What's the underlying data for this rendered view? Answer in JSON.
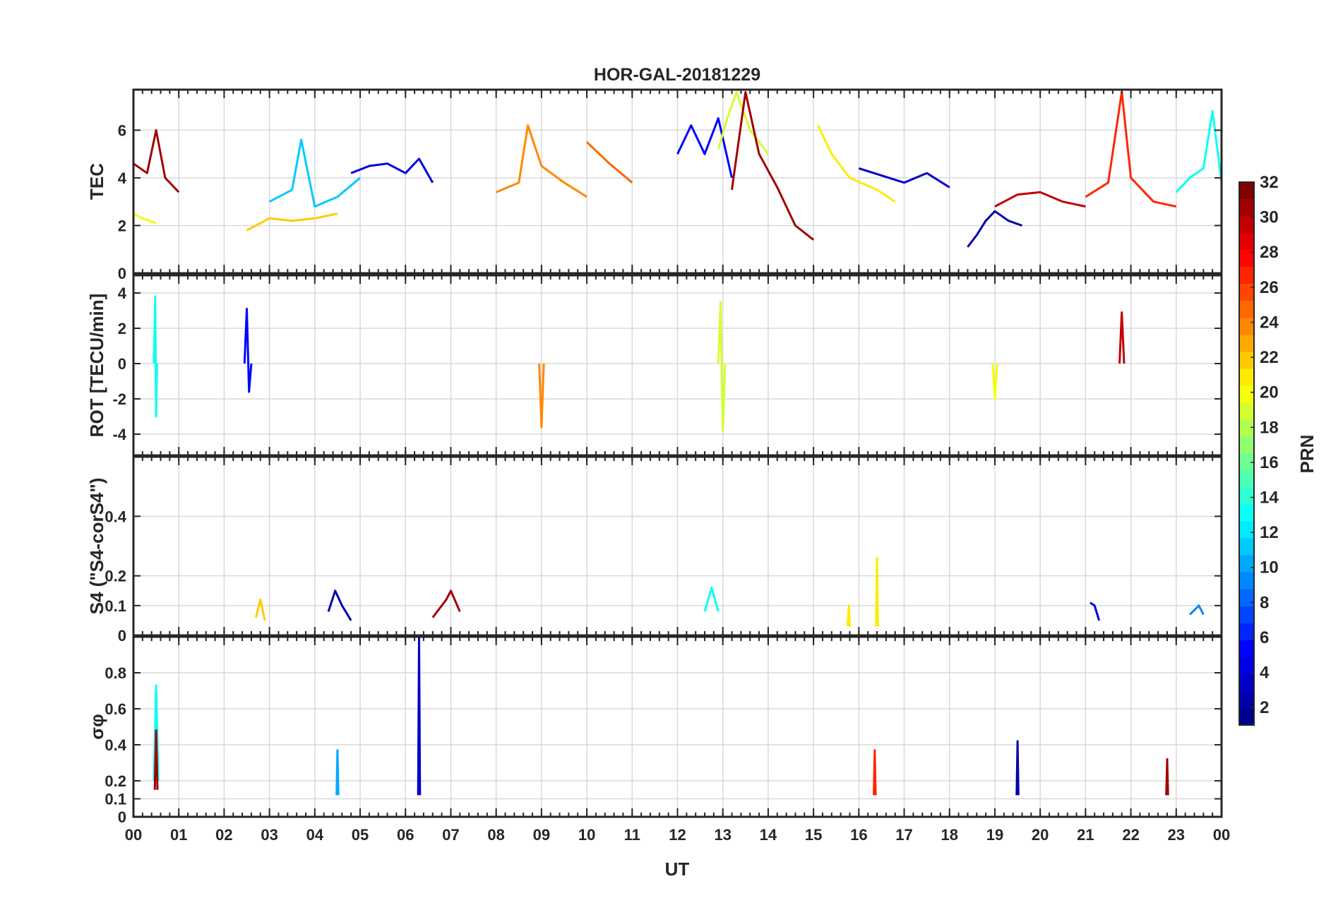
{
  "figure": {
    "title": "HOR-GAL-20181229",
    "xlabel": "UT",
    "x_tick_labels": [
      "00",
      "01",
      "02",
      "03",
      "04",
      "05",
      "06",
      "07",
      "08",
      "09",
      "10",
      "11",
      "12",
      "13",
      "14",
      "15",
      "16",
      "17",
      "18",
      "19",
      "20",
      "21",
      "22",
      "23",
      "00"
    ]
  },
  "colorbar": {
    "label": "PRN",
    "range": [
      1,
      32
    ],
    "tick_labels": [
      "2",
      "4",
      "6",
      "8",
      "10",
      "12",
      "14",
      "16",
      "18",
      "20",
      "22",
      "24",
      "26",
      "28",
      "30",
      "32"
    ],
    "tick_values": [
      2,
      4,
      6,
      8,
      10,
      12,
      14,
      16,
      18,
      20,
      22,
      24,
      26,
      28,
      30,
      32
    ],
    "colormap": "jet",
    "colors": [
      "#00008f",
      "#0000ff",
      "#0080ff",
      "#00ffff",
      "#80ff80",
      "#ffff00",
      "#ff8000",
      "#ff0000",
      "#800000"
    ]
  },
  "chart_data": [
    {
      "type": "line",
      "panel": "tec",
      "ylabel": "TEC",
      "ylim": [
        0,
        7.7
      ],
      "y_tick_values": [
        0,
        2,
        4,
        6
      ],
      "y_tick_labels": [
        "0",
        "2",
        "4",
        "6"
      ],
      "xlim": [
        0,
        24
      ],
      "grid": true,
      "series": [
        {
          "prn": 13,
          "x": [
            23.0,
            23.3,
            23.6,
            23.8,
            24.0
          ],
          "y": [
            3.4,
            4.0,
            4.4,
            6.8,
            3.8
          ]
        },
        {
          "prn": 31,
          "x": [
            0.0,
            0.3,
            0.5,
            0.7,
            1.0
          ],
          "y": [
            4.6,
            4.2,
            6.0,
            4.0,
            3.4
          ]
        },
        {
          "prn": 20,
          "x": [
            0.0,
            0.2,
            0.5
          ],
          "y": [
            2.5,
            2.3,
            2.1
          ]
        },
        {
          "prn": 22,
          "x": [
            2.5,
            3.0,
            3.5,
            4.0,
            4.5
          ],
          "y": [
            1.8,
            2.3,
            2.2,
            2.3,
            2.5
          ]
        },
        {
          "prn": 11,
          "x": [
            3.0,
            3.5,
            3.7,
            4.0,
            4.5,
            5.0
          ],
          "y": [
            3.0,
            3.5,
            5.6,
            2.8,
            3.2,
            4.0
          ]
        },
        {
          "prn": 4,
          "x": [
            4.8,
            5.2,
            5.6,
            6.0,
            6.3,
            6.6
          ],
          "y": [
            4.2,
            4.5,
            4.6,
            4.2,
            4.8,
            3.8
          ]
        },
        {
          "prn": 24,
          "x": [
            8.0,
            8.5,
            8.7,
            9.0,
            9.5,
            10.0
          ],
          "y": [
            3.4,
            3.8,
            6.2,
            4.5,
            3.8,
            3.2
          ]
        },
        {
          "prn": 25,
          "x": [
            10.0,
            10.5,
            11.0
          ],
          "y": [
            5.5,
            4.6,
            3.8
          ]
        },
        {
          "prn": 5,
          "x": [
            12.0,
            12.3,
            12.6,
            12.9,
            13.2
          ],
          "y": [
            5.0,
            6.2,
            5.0,
            6.5,
            4.0
          ]
        },
        {
          "prn": 19,
          "x": [
            12.9,
            13.1,
            13.3,
            13.6,
            14.0
          ],
          "y": [
            5.2,
            6.5,
            7.6,
            6.0,
            5.0
          ]
        },
        {
          "prn": 31,
          "x": [
            13.2,
            13.5,
            13.8,
            14.2,
            14.6,
            15.0
          ],
          "y": [
            3.5,
            7.6,
            5.0,
            3.6,
            2.0,
            1.4
          ]
        },
        {
          "prn": 21,
          "x": [
            15.1,
            15.4,
            15.8,
            16.4,
            16.8
          ],
          "y": [
            6.2,
            5.0,
            4.0,
            3.5,
            3.0
          ]
        },
        {
          "prn": 3,
          "x": [
            16.0,
            16.5,
            17.0,
            17.5,
            18.0
          ],
          "y": [
            4.4,
            4.1,
            3.8,
            4.2,
            3.6
          ]
        },
        {
          "prn": 2,
          "x": [
            18.4,
            18.6,
            18.8,
            19.0,
            19.3,
            19.6
          ],
          "y": [
            1.1,
            1.6,
            2.2,
            2.6,
            2.2,
            2.0
          ]
        },
        {
          "prn": 30,
          "x": [
            19.0,
            19.5,
            20.0,
            20.5,
            21.0
          ],
          "y": [
            2.8,
            3.3,
            3.4,
            3.0,
            2.8
          ]
        },
        {
          "prn": 27,
          "x": [
            21.0,
            21.5,
            21.8,
            22.0,
            22.5,
            23.0
          ],
          "y": [
            3.2,
            3.8,
            7.6,
            4.0,
            3.0,
            2.8
          ]
        }
      ]
    },
    {
      "type": "line",
      "panel": "rot",
      "ylabel": "ROT [TECU/min]",
      "ylim": [
        -5.2,
        5.0
      ],
      "y_tick_values": [
        -4,
        -2,
        0,
        2,
        4
      ],
      "y_tick_labels": [
        "-4",
        "-2",
        "0",
        "2",
        "4"
      ],
      "xlim": [
        0,
        24
      ],
      "grid": true,
      "series": [
        {
          "prn": 13,
          "x": [
            0.45,
            0.48,
            0.5,
            0.52
          ],
          "y": [
            0.0,
            3.8,
            -3.0,
            0.0
          ]
        },
        {
          "prn": 5,
          "x": [
            2.45,
            2.5,
            2.55,
            2.6
          ],
          "y": [
            0.0,
            3.1,
            -1.6,
            0.0
          ]
        },
        {
          "prn": 24,
          "x": [
            8.95,
            9.0,
            9.05
          ],
          "y": [
            0.0,
            -3.6,
            0.0
          ]
        },
        {
          "prn": 19,
          "x": [
            12.9,
            12.95,
            13.0,
            13.05
          ],
          "y": [
            0.0,
            3.5,
            -3.8,
            0.0
          ]
        },
        {
          "prn": 20,
          "x": [
            18.95,
            19.0,
            19.05
          ],
          "y": [
            0.0,
            -2.0,
            0.0
          ]
        },
        {
          "prn": 30,
          "x": [
            21.75,
            21.8,
            21.85
          ],
          "y": [
            0.0,
            2.9,
            0.0
          ]
        }
      ]
    },
    {
      "type": "line",
      "panel": "s4",
      "ylabel": "S4 (\"S4-corS4\")",
      "ylim": [
        0,
        0.6
      ],
      "y_tick_values": [
        0,
        0.1,
        0.2,
        0.4
      ],
      "y_tick_labels": [
        "0",
        "0.1",
        "0.2",
        "0.4"
      ],
      "xlim": [
        0,
        24
      ],
      "grid": true,
      "series": [
        {
          "prn": 2,
          "x": [
            4.3,
            4.45,
            4.6,
            4.8
          ],
          "y": [
            0.08,
            0.15,
            0.1,
            0.05
          ]
        },
        {
          "prn": 31,
          "x": [
            6.6,
            6.9,
            7.0,
            7.2
          ],
          "y": [
            0.06,
            0.12,
            0.15,
            0.08
          ]
        },
        {
          "prn": 13,
          "x": [
            12.6,
            12.75,
            12.9
          ],
          "y": [
            0.08,
            0.16,
            0.08
          ]
        },
        {
          "prn": 21,
          "x": [
            16.38,
            16.4,
            16.42
          ],
          "y": [
            0.03,
            0.26,
            0.03
          ]
        },
        {
          "prn": 21,
          "x": [
            15.75,
            15.78,
            15.8
          ],
          "y": [
            0.03,
            0.1,
            0.03
          ]
        },
        {
          "prn": 22,
          "x": [
            2.7,
            2.8,
            2.9
          ],
          "y": [
            0.06,
            0.12,
            0.05
          ]
        },
        {
          "prn": 4,
          "x": [
            21.1,
            21.2,
            21.3
          ],
          "y": [
            0.11,
            0.1,
            0.05
          ]
        },
        {
          "prn": 9,
          "x": [
            23.3,
            23.5,
            23.6
          ],
          "y": [
            0.07,
            0.1,
            0.07
          ]
        }
      ]
    },
    {
      "type": "line",
      "panel": "sigma_phi",
      "ylabel": "σφ",
      "ylim": [
        0,
        1.0
      ],
      "y_tick_values": [
        0,
        0.1,
        0.2,
        0.4,
        0.6,
        0.8
      ],
      "y_tick_labels": [
        "0",
        "0.1",
        "0.2",
        "0.4",
        "0.6",
        "0.8"
      ],
      "xlim": [
        0,
        24
      ],
      "grid": true,
      "series": [
        {
          "prn": 13,
          "x": [
            0.45,
            0.5,
            0.55
          ],
          "y": [
            0.2,
            0.73,
            0.2
          ]
        },
        {
          "prn": 31,
          "x": [
            0.47,
            0.5,
            0.53
          ],
          "y": [
            0.15,
            0.48,
            0.15
          ]
        },
        {
          "prn": 3,
          "x": [
            6.28,
            6.3,
            6.32
          ],
          "y": [
            0.12,
            1.0,
            0.12
          ]
        },
        {
          "prn": 10,
          "x": [
            4.48,
            4.5,
            4.52
          ],
          "y": [
            0.12,
            0.37,
            0.12
          ]
        },
        {
          "prn": 2,
          "x": [
            19.48,
            19.5,
            19.52
          ],
          "y": [
            0.12,
            0.42,
            0.12
          ]
        },
        {
          "prn": 27,
          "x": [
            16.33,
            16.35,
            16.37
          ],
          "y": [
            0.12,
            0.37,
            0.12
          ]
        },
        {
          "prn": 31,
          "x": [
            22.78,
            22.8,
            22.82
          ],
          "y": [
            0.12,
            0.32,
            0.12
          ]
        }
      ]
    }
  ]
}
